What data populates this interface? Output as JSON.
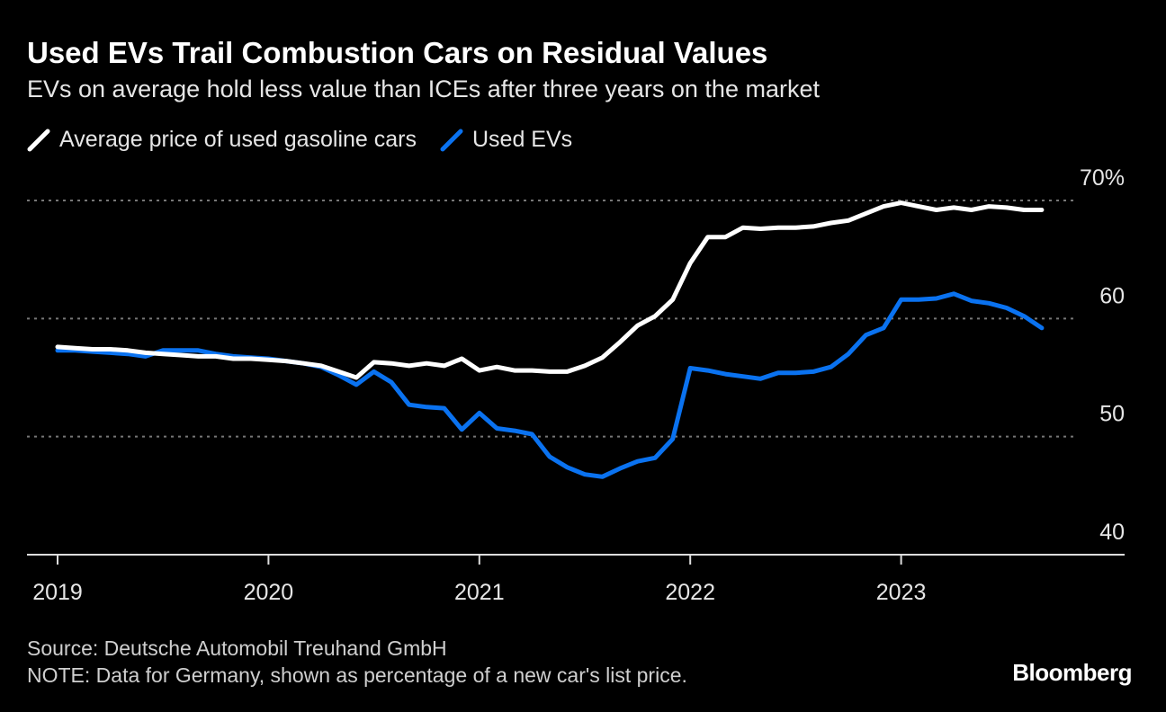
{
  "chart_data": {
    "type": "line",
    "title": "Used EVs Trail Combustion Cars on Residual Values",
    "subtitle": "EVs on average hold less value than ICEs after three years on the market",
    "x_start": "2019-01",
    "x_frequency": "monthly",
    "x_tick_labels": [
      "2019",
      "2020",
      "2021",
      "2022",
      "2023"
    ],
    "y_tick_labels": [
      "70%",
      "60",
      "50",
      "40"
    ],
    "y_ticks": [
      70,
      60,
      50,
      40
    ],
    "ylim": [
      40,
      70
    ],
    "grid": true,
    "legend_position": "top-left",
    "series": [
      {
        "name": "Average price of used gasoline cars",
        "color": "#ffffff",
        "values": [
          57.6,
          57.5,
          57.4,
          57.4,
          57.3,
          57.1,
          57.0,
          56.9,
          56.8,
          56.8,
          56.6,
          56.6,
          56.5,
          56.4,
          56.2,
          56.0,
          55.5,
          55.0,
          56.3,
          56.2,
          56.0,
          56.2,
          56.0,
          56.6,
          55.6,
          55.9,
          55.6,
          55.6,
          55.5,
          55.5,
          56.0,
          56.7,
          58.0,
          59.4,
          60.2,
          61.6,
          64.7,
          66.9,
          66.9,
          67.7,
          67.6,
          67.7,
          67.7,
          67.8,
          68.1,
          68.3,
          68.9,
          69.5,
          69.8,
          69.5,
          69.2,
          69.4,
          69.2,
          69.5,
          69.4,
          69.2,
          69.2
        ]
      },
      {
        "name": "Used EVs",
        "color": "#0a72f0",
        "values": [
          57.3,
          57.3,
          57.2,
          57.1,
          57.0,
          56.8,
          57.3,
          57.3,
          57.3,
          57.0,
          56.8,
          56.7,
          56.6,
          56.4,
          56.2,
          55.9,
          55.2,
          54.4,
          55.5,
          54.6,
          52.7,
          52.5,
          52.4,
          50.6,
          52.0,
          50.7,
          50.5,
          50.2,
          48.3,
          47.4,
          46.8,
          46.6,
          47.3,
          47.9,
          48.2,
          49.8,
          55.8,
          55.6,
          55.3,
          55.1,
          54.9,
          55.4,
          55.4,
          55.5,
          55.9,
          57.0,
          58.6,
          59.2,
          61.6,
          61.6,
          61.7,
          62.1,
          61.5,
          61.3,
          60.9,
          60.2,
          59.2
        ]
      }
    ]
  },
  "footer": {
    "source": "Source: Deutsche Automobil Treuhand GmbH",
    "note": "NOTE: Data for Germany, shown as percentage of a new car's list price.",
    "logo": "Bloomberg"
  }
}
